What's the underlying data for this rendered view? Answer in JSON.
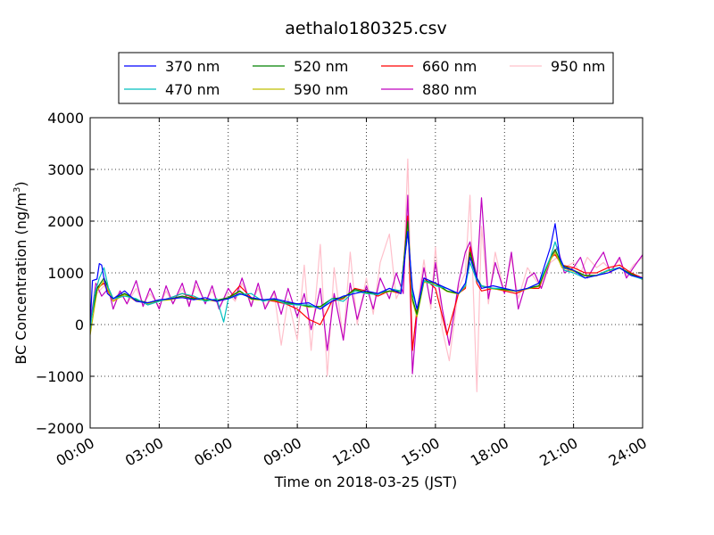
{
  "chart_data": {
    "type": "line",
    "title": "aethalo180325.csv",
    "xlabel": "Time on 2018-03-25 (JST)",
    "ylabel": "BC Concentration (ng/m³)",
    "ylabel_main": "BC Concentration (ng/m",
    "ylabel_sup": "3",
    "ylabel_end": ")",
    "xlim": [
      0,
      24
    ],
    "ylim": [
      -2000,
      4000
    ],
    "x_ticks": [
      0,
      3,
      6,
      9,
      12,
      15,
      18,
      21,
      24
    ],
    "x_tick_labels": [
      "00:00",
      "03:00",
      "06:00",
      "09:00",
      "12:00",
      "15:00",
      "18:00",
      "21:00",
      "24:00"
    ],
    "y_ticks": [
      -2000,
      -1000,
      0,
      1000,
      2000,
      3000,
      4000
    ],
    "y_tick_labels": [
      "−2000",
      "−1000",
      "0",
      "1000",
      "2000",
      "3000",
      "4000"
    ],
    "grid": true,
    "legend_position": "top-center",
    "x_units": "hours",
    "series": [
      {
        "name": "370 nm",
        "color": "#0000ff",
        "x": [
          0,
          0.1,
          0.3,
          0.4,
          0.5,
          0.6,
          0.75,
          1,
          1.5,
          2,
          2.5,
          3,
          3.5,
          4,
          4.5,
          5,
          5.5,
          6,
          6.5,
          7,
          7.5,
          8,
          8.5,
          9,
          9.5,
          10,
          10.5,
          11,
          11.5,
          12,
          12.5,
          13,
          13.5,
          13.8,
          14,
          14.2,
          14.5,
          15,
          15.5,
          16,
          16.3,
          16.5,
          16.8,
          17,
          17.5,
          18,
          18.5,
          19,
          19.5,
          20,
          20.2,
          20.4,
          20.6,
          21,
          21.5,
          22,
          22.5,
          23,
          23.5,
          24
        ],
        "y": [
          0,
          850,
          880,
          1180,
          1150,
          900,
          600,
          500,
          650,
          450,
          420,
          480,
          500,
          520,
          480,
          520,
          450,
          500,
          600,
          520,
          480,
          500,
          450,
          400,
          420,
          300,
          450,
          550,
          600,
          650,
          600,
          700,
          600,
          1800,
          700,
          300,
          900,
          800,
          700,
          600,
          800,
          1300,
          900,
          700,
          750,
          700,
          650,
          700,
          800,
          1500,
          1950,
          1300,
          1100,
          1050,
          900,
          950,
          1000,
          1100,
          950,
          900
        ]
      },
      {
        "name": "470 nm",
        "color": "#00bfbf",
        "x": [
          0,
          0.2,
          0.4,
          0.6,
          0.8,
          1,
          1.5,
          2,
          2.5,
          3,
          3.5,
          4,
          4.5,
          5,
          5.5,
          5.8,
          6,
          6.5,
          7,
          7.5,
          8,
          8.5,
          9,
          9.5,
          10,
          10.5,
          11,
          11.5,
          12,
          12.5,
          13,
          13.5,
          13.8,
          14,
          14.2,
          14.5,
          15,
          15.5,
          16,
          16.3,
          16.5,
          16.8,
          17,
          17.5,
          18,
          18.5,
          19,
          19.5,
          20,
          20.2,
          20.4,
          20.6,
          21,
          21.5,
          22,
          22.5,
          23,
          23.5,
          24
        ],
        "y": [
          -100,
          600,
          900,
          1100,
          700,
          500,
          550,
          500,
          380,
          450,
          520,
          600,
          550,
          450,
          500,
          50,
          500,
          580,
          600,
          450,
          500,
          400,
          380,
          380,
          300,
          500,
          450,
          650,
          600,
          580,
          700,
          650,
          1800,
          600,
          300,
          850,
          750,
          700,
          600,
          750,
          1200,
          850,
          750,
          700,
          700,
          650,
          700,
          800,
          1300,
          1600,
          1300,
          1050,
          1000,
          900,
          950,
          1050,
          1100,
          950,
          880
        ]
      },
      {
        "name": "520 nm",
        "color": "#008000",
        "x": [
          0,
          0.3,
          0.6,
          1,
          1.5,
          2,
          2.5,
          3,
          3.5,
          4,
          4.5,
          5,
          5.5,
          6,
          6.5,
          7,
          7.5,
          8,
          8.5,
          9,
          9.5,
          10,
          10.5,
          11,
          11.5,
          12,
          12.5,
          13,
          13.5,
          13.8,
          14,
          14.2,
          14.5,
          15,
          15.5,
          16,
          16.3,
          16.5,
          16.8,
          17,
          17.5,
          18,
          18.5,
          19,
          19.5,
          20,
          20.2,
          20.5,
          21,
          21.5,
          22,
          22.5,
          23,
          23.5,
          24
        ],
        "y": [
          0,
          700,
          900,
          500,
          600,
          480,
          420,
          470,
          500,
          550,
          500,
          480,
          470,
          520,
          650,
          500,
          480,
          480,
          420,
          400,
          350,
          350,
          500,
          520,
          680,
          620,
          600,
          650,
          650,
          2000,
          500,
          200,
          850,
          800,
          650,
          600,
          750,
          1400,
          900,
          750,
          700,
          680,
          650,
          700,
          750,
          1300,
          1450,
          1150,
          1050,
          950,
          950,
          1050,
          1100,
          980,
          880
        ]
      },
      {
        "name": "590 nm",
        "color": "#bfbf00",
        "x": [
          0,
          0.3,
          0.6,
          1,
          1.5,
          2,
          2.5,
          3,
          3.5,
          4,
          4.5,
          5,
          5.5,
          6,
          6.5,
          7,
          7.5,
          8,
          8.5,
          9,
          9.5,
          10,
          10.5,
          11,
          11.5,
          12,
          12.5,
          13,
          13.5,
          13.8,
          14,
          14.2,
          14.5,
          15,
          15.5,
          16,
          16.3,
          16.5,
          16.8,
          17,
          17.5,
          18,
          18.5,
          19,
          19.5,
          20,
          20.2,
          20.5,
          21,
          21.5,
          22,
          22.5,
          23,
          23.5,
          24
        ],
        "y": [
          -200,
          650,
          850,
          450,
          580,
          470,
          400,
          460,
          480,
          540,
          490,
          470,
          460,
          510,
          640,
          490,
          470,
          470,
          410,
          390,
          340,
          340,
          490,
          510,
          670,
          610,
          590,
          640,
          640,
          1900,
          450,
          150,
          820,
          780,
          640,
          590,
          740,
          1350,
          880,
          740,
          690,
          670,
          640,
          690,
          740,
          1250,
          1400,
          1100,
          1030,
          940,
          940,
          1040,
          1090,
          970,
          870
        ]
      },
      {
        "name": "660 nm",
        "color": "#ff0000",
        "x": [
          0,
          0.3,
          0.6,
          1,
          1.5,
          2,
          2.5,
          3,
          3.5,
          4,
          4.5,
          5,
          5.5,
          6,
          6.5,
          7,
          7.5,
          8,
          8.5,
          9,
          9.5,
          10,
          10.5,
          11,
          11.5,
          12,
          12.5,
          13,
          13.5,
          13.8,
          14,
          14.2,
          14.5,
          15,
          15.5,
          16,
          16.3,
          16.5,
          16.8,
          17,
          17.5,
          18,
          18.5,
          19,
          19.5,
          20,
          20.2,
          20.5,
          21,
          21.5,
          22,
          22.5,
          23,
          23.5,
          24
        ],
        "y": [
          0,
          700,
          800,
          450,
          600,
          450,
          420,
          450,
          520,
          600,
          520,
          480,
          450,
          500,
          750,
          520,
          480,
          450,
          400,
          300,
          100,
          0,
          450,
          500,
          700,
          650,
          550,
          650,
          600,
          2100,
          -500,
          300,
          900,
          700,
          -200,
          600,
          700,
          1500,
          800,
          650,
          700,
          650,
          600,
          700,
          700,
          1300,
          1350,
          1150,
          1100,
          1000,
          1000,
          1100,
          1150,
          1000,
          900
        ]
      },
      {
        "name": "880 nm",
        "color": "#bf00bf",
        "x": [
          0,
          0.25,
          0.5,
          0.8,
          1,
          1.3,
          1.6,
          2,
          2.3,
          2.6,
          3,
          3.3,
          3.6,
          4,
          4.3,
          4.6,
          5,
          5.3,
          5.6,
          6,
          6.3,
          6.6,
          7,
          7.3,
          7.6,
          8,
          8.3,
          8.6,
          9,
          9.3,
          9.6,
          10,
          10.3,
          10.6,
          11,
          11.3,
          11.6,
          12,
          12.3,
          12.6,
          13,
          13.3,
          13.6,
          13.8,
          14,
          14.2,
          14.5,
          14.8,
          15,
          15.3,
          15.6,
          16,
          16.3,
          16.5,
          16.8,
          17,
          17.3,
          17.6,
          18,
          18.3,
          18.6,
          19,
          19.3,
          19.6,
          20,
          20.3,
          20.6,
          21,
          21.3,
          21.6,
          22,
          22.3,
          22.6,
          23,
          23.3,
          23.6,
          24
        ],
        "y": [
          0,
          800,
          550,
          700,
          300,
          650,
          400,
          850,
          350,
          700,
          300,
          750,
          400,
          800,
          350,
          850,
          400,
          750,
          300,
          700,
          500,
          900,
          350,
          800,
          300,
          650,
          200,
          700,
          150,
          600,
          -100,
          700,
          -500,
          600,
          -300,
          800,
          100,
          750,
          300,
          900,
          500,
          1000,
          600,
          2500,
          -950,
          200,
          1100,
          400,
          1200,
          300,
          -400,
          800,
          1400,
          1600,
          900,
          2450,
          500,
          1200,
          600,
          1400,
          300,
          900,
          1000,
          700,
          1250,
          1500,
          1000,
          1100,
          1300,
          900,
          1200,
          1400,
          1000,
          1300,
          900,
          1100,
          1350
        ]
      },
      {
        "name": "950 nm",
        "color": "#ffc0cb",
        "x": [
          0,
          0.3,
          0.6,
          1,
          1.3,
          1.6,
          2,
          2.3,
          2.6,
          3,
          3.3,
          3.6,
          4,
          4.3,
          4.6,
          5,
          5.3,
          5.6,
          6,
          6.3,
          6.6,
          7,
          7.3,
          7.6,
          8,
          8.3,
          8.6,
          9,
          9.3,
          9.6,
          10,
          10.3,
          10.6,
          11,
          11.3,
          11.6,
          12,
          12.3,
          12.6,
          13,
          13.3,
          13.6,
          13.8,
          14,
          14.2,
          14.5,
          14.8,
          15,
          15.3,
          15.6,
          16,
          16.3,
          16.5,
          16.8,
          17,
          17.3,
          17.6,
          18,
          18.3,
          18.6,
          19,
          19.3,
          19.6,
          20,
          20.3,
          20.6,
          21,
          21.3,
          21.6,
          22,
          22.3,
          22.6,
          23,
          23.3,
          23.6,
          24
        ],
        "y": [
          0,
          600,
          750,
          450,
          650,
          400,
          700,
          400,
          600,
          350,
          650,
          400,
          700,
          400,
          750,
          450,
          650,
          350,
          600,
          450,
          800,
          400,
          700,
          350,
          600,
          -400,
          500,
          -300,
          1150,
          -500,
          1550,
          -1000,
          1100,
          -300,
          1400,
          0,
          900,
          200,
          1200,
          1750,
          500,
          800,
          3200,
          -500,
          300,
          1250,
          300,
          1500,
          -100,
          -700,
          700,
          1000,
          2500,
          -1300,
          1900,
          400,
          1400,
          600,
          1300,
          500,
          1100,
          900,
          700,
          1200,
          1300,
          1100,
          1200,
          1000,
          1300,
          1100,
          1200,
          1050,
          1250,
          950,
          1150,
          1300
        ]
      }
    ]
  }
}
